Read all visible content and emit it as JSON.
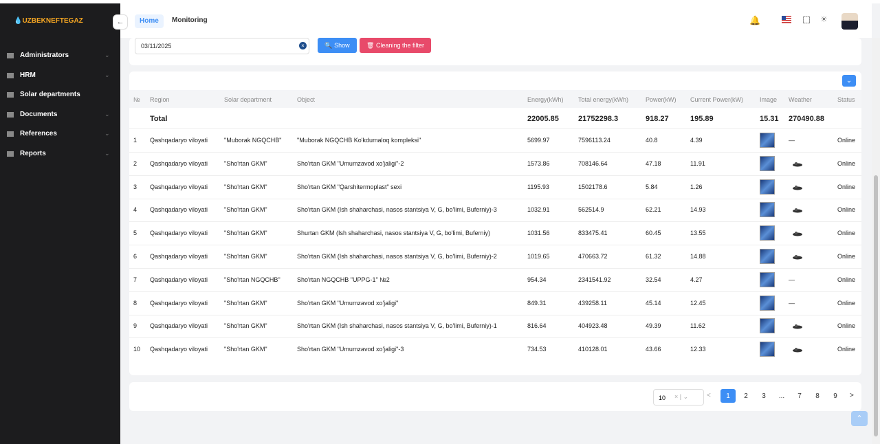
{
  "sidebar": {
    "brand": "UZBEKNEFTEGAZ",
    "menu": [
      "Administrators",
      "HRM",
      "Solar departments",
      "Documents",
      "References",
      "Reports"
    ]
  },
  "topbar": {
    "tabs": [
      "Home",
      "Monitoring"
    ]
  },
  "filter": {
    "date": "03/11/2025",
    "show": "Show",
    "clean": "Cleaning the filter"
  },
  "table": {
    "columns": [
      "№",
      "Region",
      "Solar department",
      "Object",
      "Energy(kWh)",
      "Total energy(kWh)",
      "Power(kW)",
      "Current Power(kW)",
      "Image",
      "Weather",
      "Status"
    ],
    "total": {
      "label": "Total",
      "values": [
        22005.85,
        21752298.3,
        918.27,
        195.89,
        15.31,
        270490.88
      ]
    },
    "rows": [
      [
        1,
        "Qashqadaryo viloyati",
        "\"Muborak NGQCHB\"",
        "\"Muborak NGQCHB Ko'kdumaloq kompleksi\"",
        5699.97,
        7596113.24,
        40.8,
        4.39,
        "—",
        "Online"
      ],
      [
        2,
        "Qashqadaryo viloyati",
        "\"Sho'rtan GKM\"",
        "Sho'rtan GKM \"Umumzavod xo'jaligi\"-2",
        1573.86,
        708146.64,
        47.18,
        11.91,
        null,
        "Online"
      ],
      [
        3,
        "Qashqadaryo viloyati",
        "\"Sho'rtan GKM\"",
        "Sho'rtan GKM \"Qarshitermoplast\" sexi",
        1195.93,
        1502178.6,
        5.84,
        1.26,
        null,
        "Online"
      ],
      [
        4,
        "Qashqadaryo viloyati",
        "\"Sho'rtan GKM\"",
        "Sho'rtan GKM (Ish shaharchasi, nasos stantsiya V, G, bo'limi, Buferniy)-3",
        1032.91,
        562514.9,
        62.21,
        14.93,
        null,
        "Online"
      ],
      [
        5,
        "Qashqadaryo viloyati",
        "\"Sho'rtan GKM\"",
        "Shurtan GKM (Ish shaharchasi, nasos stantsiya V, G, bo'limi, Buferniy)",
        1031.56,
        833475.41,
        60.45,
        13.55,
        null,
        "Online"
      ],
      [
        6,
        "Qashqadaryo viloyati",
        "\"Sho'rtan GKM\"",
        "Sho'rtan GKM (Ish shaharchasi, nasos stantsiya V, G, bo'limi, Buferniy)-2",
        1019.65,
        470663.72,
        61.32,
        14.88,
        null,
        "Online"
      ],
      [
        7,
        "Qashqadaryo viloyati",
        "\"Sho'rtan NGQCHB\"",
        "Sho'rtan NGQCHB \"UPPG-1\" №2",
        954.34,
        2341541.92,
        32.54,
        4.27,
        "—",
        "Online"
      ],
      [
        8,
        "Qashqadaryo viloyati",
        "\"Sho'rtan GKM\"",
        "Sho'rtan GKM \"Umumzavod xo'jaligi\"",
        849.31,
        439258.11,
        45.14,
        12.45,
        "—",
        "Online"
      ],
      [
        9,
        "Qashqadaryo viloyati",
        "\"Sho'rtan GKM\"",
        "Sho'rtan GKM (Ish shaharchasi, nasos stantsiya V, G, bo'limi, Buferniy)-1",
        816.64,
        404923.48,
        49.39,
        11.62,
        null,
        "Online"
      ],
      [
        10,
        "Qashqadaryo viloyati",
        "\"Sho'rtan GKM\"",
        "Sho'rtan GKM \"Umumzavod xo'jaligi\"-3",
        734.53,
        410128.01,
        43.66,
        12.33,
        null,
        "Online"
      ]
    ]
  },
  "pagination": {
    "page_size": "10",
    "pages": [
      "1",
      "2",
      "3",
      "...",
      "7",
      "8",
      "9"
    ]
  }
}
